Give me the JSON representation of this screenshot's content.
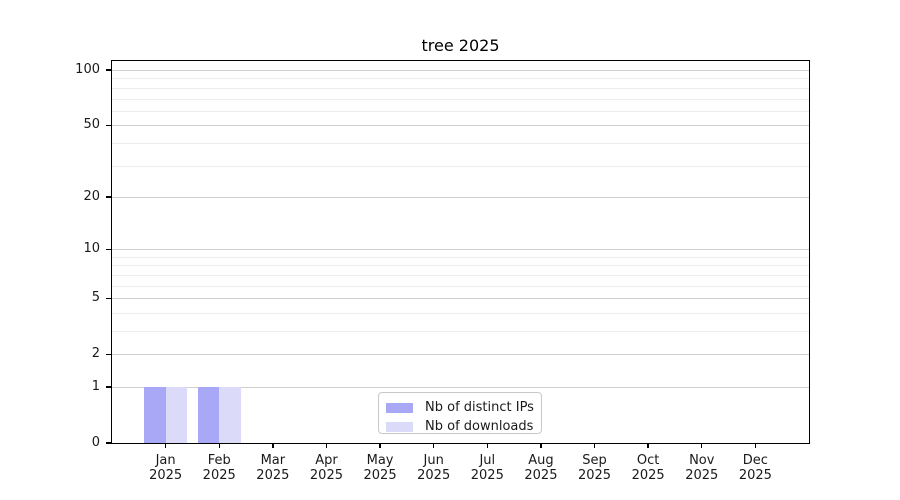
{
  "chart_data": {
    "type": "bar",
    "title": "tree 2025",
    "categories": [
      "Jan 2025",
      "Feb 2025",
      "Mar 2025",
      "Apr 2025",
      "May 2025",
      "Jun 2025",
      "Jul 2025",
      "Aug 2025",
      "Sep 2025",
      "Oct 2025",
      "Nov 2025",
      "Dec 2025"
    ],
    "months": [
      "Jan",
      "Feb",
      "Mar",
      "Apr",
      "May",
      "Jun",
      "Jul",
      "Aug",
      "Sep",
      "Oct",
      "Nov",
      "Dec"
    ],
    "year": "2025",
    "series": [
      {
        "name": "Nb of distinct IPs",
        "color": "#a8a8f6",
        "values": [
          1,
          1,
          0,
          0,
          0,
          0,
          0,
          0,
          0,
          0,
          0,
          0
        ]
      },
      {
        "name": "Nb of downloads",
        "color": "#dbdbf9",
        "values": [
          1,
          1,
          0,
          0,
          0,
          0,
          0,
          0,
          0,
          0,
          0,
          0
        ]
      }
    ],
    "xlabel": "",
    "ylabel": "",
    "yscale": "log1p",
    "ylim": [
      0,
      112
    ],
    "ytick_values": [
      0,
      1,
      2,
      5,
      10,
      20,
      50,
      100
    ],
    "ytick_labels": [
      "0",
      "1",
      "2",
      "5",
      "10",
      "20",
      "50",
      "100"
    ],
    "gridlines_major": [
      1,
      2,
      5,
      10,
      20,
      50,
      100
    ],
    "gridlines_minor": [
      3,
      4,
      6,
      7,
      8,
      9,
      30,
      40,
      60,
      70,
      80,
      90
    ],
    "grid": "horizontal",
    "legend_position": "lower center",
    "colors": {
      "grid_major": "#d0d0d0",
      "grid_minor": "#ececec",
      "spine": "#000000",
      "text": "#1a1a1a",
      "background": "#ffffff"
    }
  }
}
